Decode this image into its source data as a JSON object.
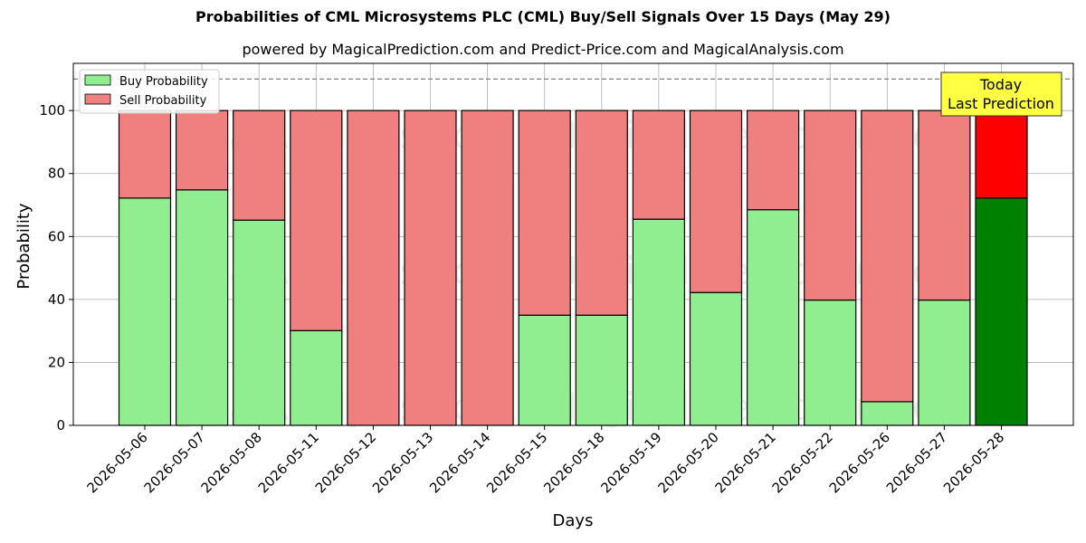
{
  "chart_data": {
    "type": "bar",
    "title": "Probabilities of CML Microsystems PLC (CML) Buy/Sell Signals Over 15 Days (May 29)",
    "subtitle": "powered by MagicalPrediction.com and Predict-Price.com and MagicalAnalysis.com",
    "xlabel": "Days",
    "ylabel": "Probability",
    "ylim": [
      0,
      115
    ],
    "yticks": [
      0,
      20,
      40,
      60,
      80,
      100
    ],
    "categories": [
      "2026-05-06",
      "2026-05-07",
      "2026-05-08",
      "2026-05-11",
      "2026-05-12",
      "2026-05-13",
      "2026-05-14",
      "2026-05-15",
      "2026-05-18",
      "2026-05-19",
      "2026-05-20",
      "2026-05-21",
      "2026-05-22",
      "2026-05-26",
      "2026-05-27",
      "2026-05-28"
    ],
    "series": [
      {
        "name": "Buy Probability",
        "color": "#90ee90",
        "values": [
          72.2,
          74.8,
          65.2,
          30.1,
          0,
          0,
          0,
          35.0,
          35.0,
          65.5,
          42.2,
          68.5,
          39.8,
          7.5,
          39.8,
          72.2
        ]
      },
      {
        "name": "Sell Probability",
        "color": "#f08080",
        "values": [
          27.8,
          25.2,
          34.8,
          69.9,
          100,
          100,
          100,
          65.0,
          65.0,
          34.5,
          57.8,
          31.5,
          60.2,
          92.5,
          60.2,
          27.8
        ]
      }
    ],
    "highlight": {
      "index": 15,
      "buy_color": "#008000",
      "sell_color": "#ff0000"
    },
    "reference_line": {
      "y": 110,
      "style": "dashed",
      "color": "#808080"
    },
    "annotation": {
      "lines": [
        "Today",
        "Last Prediction"
      ],
      "background": "#ffff44"
    },
    "legend": {
      "placement": "top-left"
    },
    "grid": true,
    "watermarks": [
      "MagicalAnalysis.com",
      "MagicalPrediction.com"
    ]
  }
}
